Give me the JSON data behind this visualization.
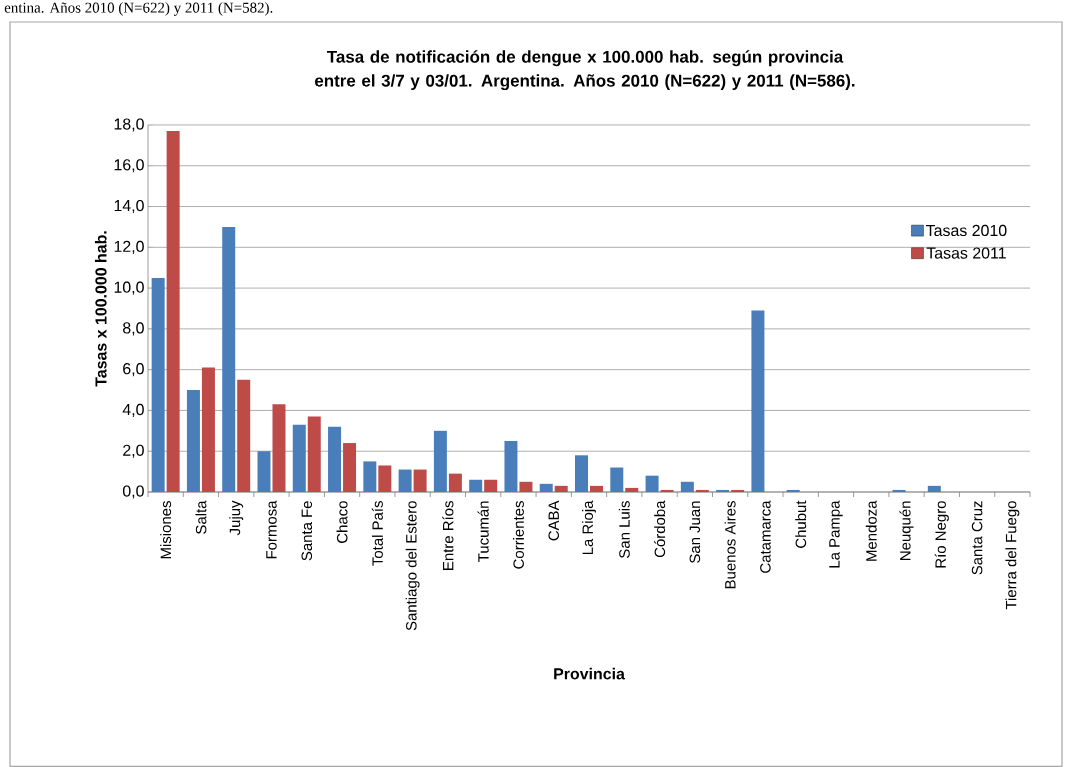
{
  "chart_data": {
    "type": "bar",
    "title": "Tasa de notificación de dengue x 100.000 hab. según provincia entre el 3/7 y 03/01. Argentina. Años 2010 (N=622) y 2011 (N=586).",
    "xlabel": "Provincia",
    "ylabel": "Tasas x 100.000 hab.",
    "annotations": [
      "entina. Años 2010 (N=622) y 2011 (N=582)."
    ],
    "categories": [
      "Misiones",
      "Salta",
      "Jujuy",
      "Formosa",
      "Santa Fe",
      "Chaco",
      "Total País",
      "Santiago del Estero",
      "Entre Ríos",
      "Tucumán",
      "Corrientes",
      "CABA",
      "La Rioja",
      "San Luis",
      "Córdoba",
      "San Juan",
      "Buenos Aires",
      "Catamarca",
      "Chubut",
      "La Pampa",
      "Mendoza",
      "Neuquén",
      "Río Negro",
      "Santa Cruz",
      "Tierra del Fuego"
    ],
    "series": [
      {
        "name": "Tasas 2010",
        "color": "#4a7ebb",
        "values": [
          10.5,
          5.0,
          13.0,
          2.0,
          3.3,
          3.2,
          1.5,
          1.1,
          3.0,
          0.6,
          2.5,
          0.4,
          1.8,
          1.2,
          0.8,
          0.5,
          0.1,
          8.9,
          0.1,
          0,
          0,
          0.1,
          0.3,
          0,
          0
        ]
      },
      {
        "name": "Tasas 2011",
        "color": "#be4b48",
        "values": [
          17.7,
          6.1,
          5.5,
          4.3,
          3.7,
          2.4,
          1.3,
          1.1,
          0.9,
          0.6,
          0.5,
          0.3,
          0.3,
          0.2,
          0.1,
          0.1,
          0.1,
          0,
          0,
          0,
          0,
          0,
          0,
          0,
          0
        ]
      }
    ],
    "ylim": [
      0,
      18
    ],
    "yticks": [
      {
        "value": 0,
        "label": "0,0"
      },
      {
        "value": 2,
        "label": "2,0"
      },
      {
        "value": 4,
        "label": "4,0"
      },
      {
        "value": 6,
        "label": "6,0"
      },
      {
        "value": 8,
        "label": "8,0"
      },
      {
        "value": 10,
        "label": "10,0"
      },
      {
        "value": 12,
        "label": "12,0"
      },
      {
        "value": 14,
        "label": "14,0"
      },
      {
        "value": 16,
        "label": "16,0"
      },
      {
        "value": 18,
        "label": "18,0"
      }
    ],
    "grid": "y",
    "legend": "right"
  }
}
